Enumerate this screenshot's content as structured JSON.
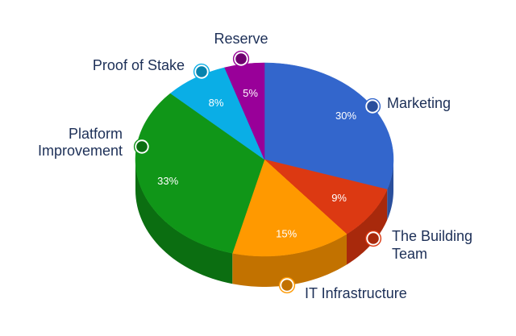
{
  "chart_data": {
    "type": "pie",
    "title": "",
    "legend": "labels-around-slices",
    "slices": [
      {
        "label": "Marketing",
        "value": 30,
        "display": "30%",
        "color": "#3366cc",
        "dark": "#2a4f9c",
        "label_lines": [
          "Marketing"
        ]
      },
      {
        "label": "The Building Team",
        "value": 9,
        "display": "9%",
        "color": "#dc3912",
        "dark": "#a8290c",
        "label_lines": [
          "The Building",
          "Team"
        ]
      },
      {
        "label": "IT Infrastructure",
        "value": 15,
        "display": "15%",
        "color": "#ff9900",
        "dark": "#c27200",
        "label_lines": [
          "IT Infrastructure"
        ]
      },
      {
        "label": "Platform Improvement",
        "value": 33,
        "display": "33%",
        "color": "#109618",
        "dark": "#0b6e11",
        "label_lines": [
          "Platform",
          "Improvement"
        ]
      },
      {
        "label": "Proof of Stake",
        "value": 8,
        "display": "8%",
        "color": "#0aaee6",
        "dark": "#0783ad",
        "label_lines": [
          "Proof of Stake"
        ]
      },
      {
        "label": "Reserve",
        "value": 5,
        "display": "5%",
        "color": "#990099",
        "dark": "#6f006f",
        "label_lines": [
          "Reserve"
        ]
      }
    ]
  }
}
